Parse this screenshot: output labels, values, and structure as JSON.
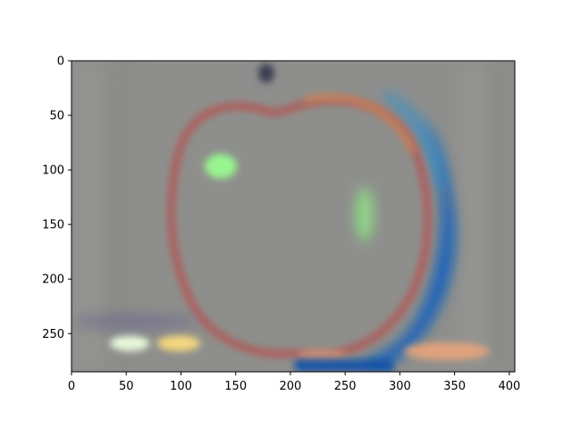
{
  "chart_data": {
    "type": "heatmap",
    "title": "",
    "xlabel": "",
    "ylabel": "",
    "xlim": [
      0,
      405
    ],
    "ylim": [
      285,
      0
    ],
    "y_inverted": true,
    "grid": false,
    "x_ticks": [
      0,
      50,
      100,
      150,
      200,
      250,
      300,
      350,
      400
    ],
    "y_ticks": [
      0,
      50,
      100,
      150,
      200,
      250
    ],
    "colors": {
      "background_gray": "#8e8f8c",
      "apple_outline_red": "#b05a58",
      "shadow_blue": "#0b5fbf",
      "highlight_green": "#98f58f",
      "highlight_yellow": "#f2d77e",
      "stem_dark": "#3e3f52"
    }
  }
}
